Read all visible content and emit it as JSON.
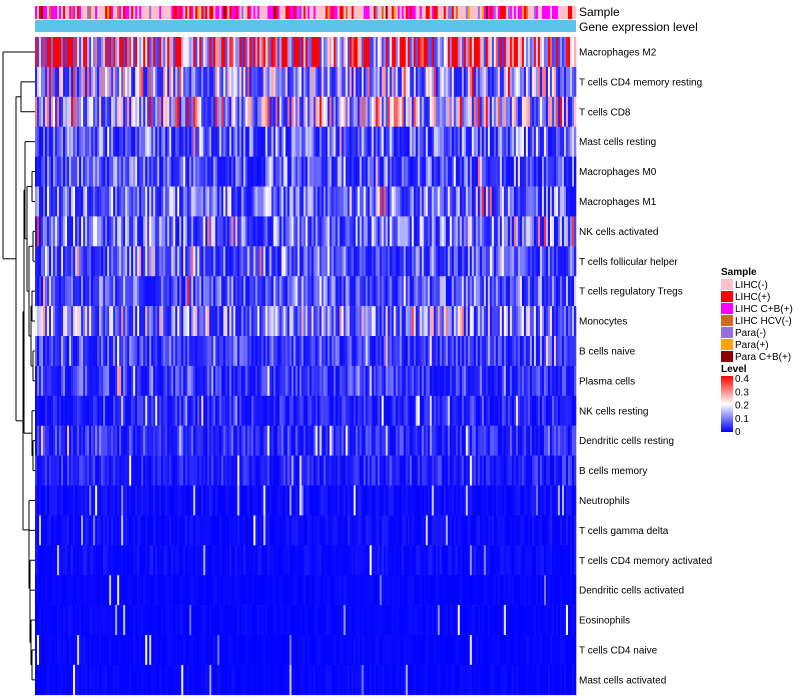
{
  "chart_data": {
    "type": "heatmap",
    "annotation_tracks": [
      "Sample",
      "Gene expression level"
    ],
    "rows": [
      {
        "label": "Macrophages M2",
        "mean": 0.33
      },
      {
        "label": "T cells CD4 memory resting",
        "mean": 0.14
      },
      {
        "label": "T cells CD8",
        "mean": 0.15
      },
      {
        "label": "Mast cells resting",
        "mean": 0.08
      },
      {
        "label": "Macrophages M0",
        "mean": 0.07
      },
      {
        "label": "Macrophages M1",
        "mean": 0.09
      },
      {
        "label": "NK cells activated",
        "mean": 0.09
      },
      {
        "label": "T cells follicular helper",
        "mean": 0.08
      },
      {
        "label": "T cells regulatory  Tregs",
        "mean": 0.07
      },
      {
        "label": "Monocytes",
        "mean": 0.11
      },
      {
        "label": "B cells naive",
        "mean": 0.05
      },
      {
        "label": "Plasma cells",
        "mean": 0.05
      },
      {
        "label": "NK cells resting",
        "mean": 0.03
      },
      {
        "label": "Dendritic cells resting",
        "mean": 0.04
      },
      {
        "label": "B cells memory",
        "mean": 0.03
      },
      {
        "label": "Neutrophils",
        "mean": 0.01
      },
      {
        "label": "T cells gamma delta",
        "mean": 0.01
      },
      {
        "label": "T cells CD4 memory activated",
        "mean": 0.01
      },
      {
        "label": "Dendritic cells activated",
        "mean": 0.005
      },
      {
        "label": "Eosinophils",
        "mean": 0.005
      },
      {
        "label": "T cells CD4 naive",
        "mean": 0.005
      },
      {
        "label": "Mast cells activated",
        "mean": 0.005
      }
    ],
    "legend_sample": {
      "title": "Sample",
      "items": [
        {
          "label": "LIHC(-)",
          "color": "#ffc0cb"
        },
        {
          "label": "LIHC(+)",
          "color": "#ff0000"
        },
        {
          "label": "LIHC C+B(+)",
          "color": "#ff00ff"
        },
        {
          "label": "LIHC HCV(-)",
          "color": "#d2691e"
        },
        {
          "label": "Para(-)",
          "color": "#9370db"
        },
        {
          "label": "Para(+)",
          "color": "#ffa500"
        },
        {
          "label": "Para C+B(+)",
          "color": "#8b0000"
        }
      ]
    },
    "legend_level": {
      "title": "Level",
      "ticks": [
        "0.4",
        "0.3",
        "0.2",
        "0.1",
        "0"
      ],
      "range": [
        0,
        0.4
      ],
      "colors": [
        "#0000ff",
        "#ffffff",
        "#ff0000"
      ]
    },
    "expression_track_color": "#5bc4e8"
  }
}
